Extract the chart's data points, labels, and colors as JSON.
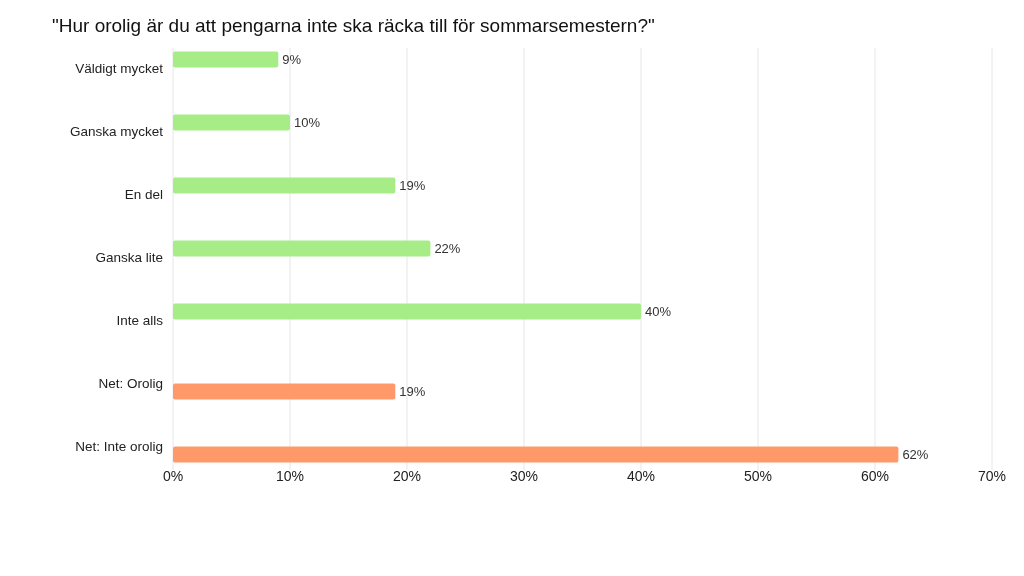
{
  "chart_data": {
    "type": "bar",
    "orientation": "horizontal",
    "title": "\"Hur orolig är du att pengarna inte ska räcka till för sommarsemestern?\"",
    "categories": [
      "Väldigt mycket",
      "Ganska mycket",
      "En del",
      "Ganska lite",
      "Inte alls",
      "Net: Orolig",
      "Net: Inte orolig"
    ],
    "series": [
      {
        "color": "#a6ec87",
        "values": [
          9,
          10,
          19,
          22,
          40,
          null,
          null
        ],
        "value_labels": [
          "9%",
          "10%",
          "19%",
          "22%",
          "40%",
          null,
          null
        ]
      },
      {
        "color": "#ff996a",
        "values": [
          null,
          null,
          null,
          null,
          null,
          19,
          62
        ],
        "value_labels": [
          null,
          null,
          null,
          null,
          null,
          "19%",
          "62%"
        ]
      }
    ],
    "xlim": [
      0,
      70
    ],
    "xticks": [
      {
        "value": 0,
        "label": "0%"
      },
      {
        "value": 10,
        "label": "10%"
      },
      {
        "value": 20,
        "label": "20%"
      },
      {
        "value": 30,
        "label": "30%"
      },
      {
        "value": 40,
        "label": "40%"
      },
      {
        "value": 50,
        "label": "50%"
      },
      {
        "value": 60,
        "label": "60%"
      },
      {
        "value": 70,
        "label": "70%"
      }
    ],
    "grid": "x"
  }
}
